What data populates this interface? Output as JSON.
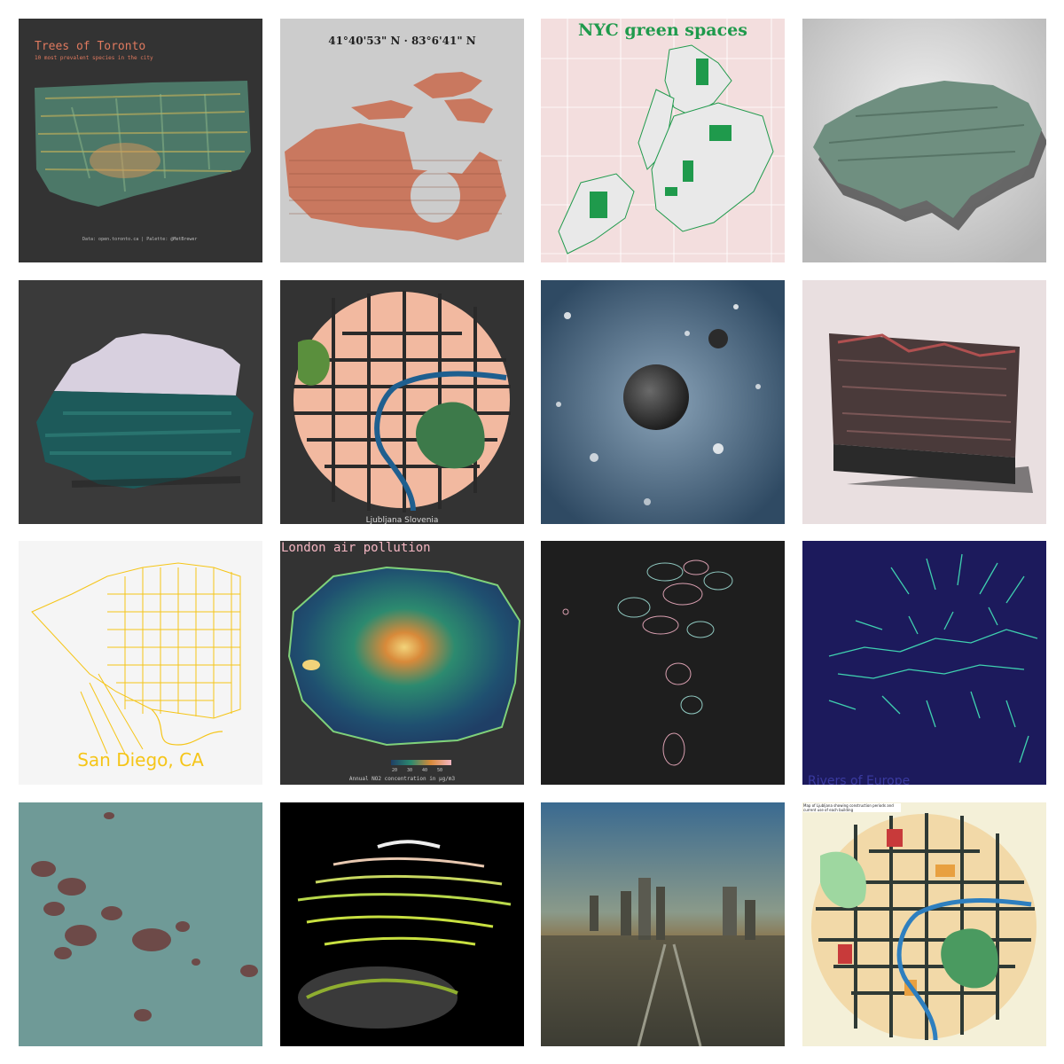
{
  "tiles": [
    {
      "title": "Trees of Toronto",
      "subtitle": "10 most prevalent species in the city",
      "credit": "Data: open.toronto.ca | Palette: @MetBrewer"
    },
    {
      "title": "41°40'53\" N · 83°6'41\" N"
    },
    {
      "title": "NYC green spaces"
    },
    {},
    {},
    {
      "title": "Ljubljana Slovenia"
    },
    {},
    {},
    {
      "title": "San Diego, CA"
    },
    {
      "title": "London air pollution",
      "legend_ticks": [
        "20",
        "30",
        "40",
        "50"
      ],
      "legend_caption": "Annual NO2 concentration in µg/m3"
    },
    {},
    {
      "title": "Rivers of Europe"
    },
    {},
    {},
    {},
    {
      "title": "Map of Ljubljana showing construction periods and current use of each building"
    }
  ],
  "colors": {
    "toronto_bg": "#333333",
    "toronto_title": "#e07a5f",
    "canada_bg": "#cccccc",
    "canada_land": "#c9785f",
    "nyc_bg": "#f3dede",
    "nyc_green": "#1f9a4c",
    "london_bg": "#333333",
    "london_title": "#f4b6c2",
    "sandiego_bg": "#f5f5f5",
    "sandiego_line": "#f5c518",
    "rivers_bg": "#1c1a5c",
    "rivers_line": "#3fd1b0"
  }
}
